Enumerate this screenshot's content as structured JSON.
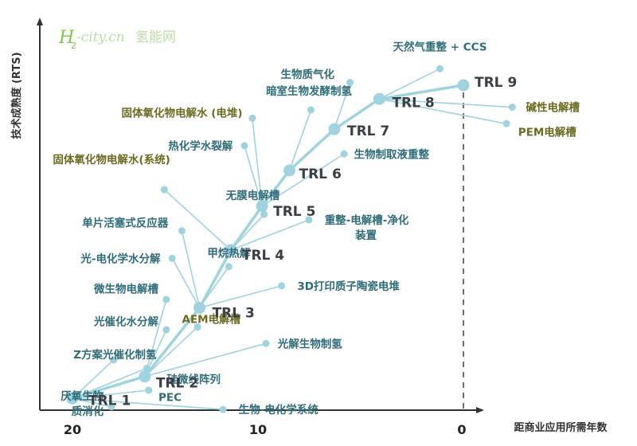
{
  "watermark": {
    "h": "H",
    "sub": "2",
    "latin": "-city.cn",
    "cjk": "氢能网"
  },
  "chart_data": {
    "type": "scatter",
    "xlabel": "距商业应用所需年数",
    "ylabel": "技术成熟度 (RTS)",
    "xlim": [
      20,
      0
    ],
    "ylim": [
      0,
      10
    ],
    "x_ticks": [
      "20",
      "10",
      "0"
    ],
    "colors": {
      "node": "#9ed3df",
      "line": "#9ed3df",
      "text_teal": "#2f6d7a",
      "text_olive": "#6b6b22",
      "axis": "#333333",
      "dash": "#333333",
      "watermark": "#7ac943"
    },
    "trl_points": [
      {
        "label": "TRL 1",
        "x": 20.0,
        "y": 0.6
      },
      {
        "label": "TRL 2",
        "x": 16.3,
        "y": 1.4
      },
      {
        "label": "TRL 3",
        "x": 13.5,
        "y": 3.9
      },
      {
        "label": "TRL 4",
        "x": 11.9,
        "y": 6.0
      },
      {
        "label": "TRL 5",
        "x": 10.3,
        "y": 7.6
      },
      {
        "label": "TRL 6",
        "x": 8.9,
        "y": 8.9
      },
      {
        "label": "TRL 7",
        "x": 6.6,
        "y": 10.4
      },
      {
        "label": "TRL 8",
        "x": 4.3,
        "y": 11.5
      },
      {
        "label": "TRL 9",
        "x": 0.0,
        "y": 12.0
      }
    ],
    "technologies": [
      {
        "name": "天然气重整 + CCS",
        "x": 1.2,
        "y": 12.6,
        "trl": 8,
        "color": "teal",
        "anchor": "middle",
        "lx": 1.2,
        "ly": 13.4
      },
      {
        "name": "碱性电解槽",
        "x": -2.5,
        "y": 11.2,
        "trl": 8,
        "color": "olive",
        "anchor": "start",
        "lx": -3.2,
        "ly": 11.2
      },
      {
        "name": "PEM电解槽",
        "x": -2.2,
        "y": 10.6,
        "trl": 8,
        "color": "olive",
        "anchor": "start",
        "lx": -2.8,
        "ly": 10.3
      },
      {
        "name": "生物质气化",
        "x": 5.8,
        "y": 12.1,
        "trl": 7,
        "color": "teal",
        "anchor": "end",
        "lx": 6.6,
        "ly": 12.4
      },
      {
        "name": "暗室生物发酵制氢",
        "x": 7.8,
        "y": 11.1,
        "trl": 6,
        "color": "teal",
        "anchor": "end",
        "lx": 5.7,
        "ly": 11.8
      },
      {
        "name": "固体氧化物电解水 (电堆)",
        "x": 10.8,
        "y": 10.8,
        "trl": 5,
        "color": "olive",
        "anchor": "end",
        "lx": 11.3,
        "ly": 11.0
      },
      {
        "name": "热化学水裂解",
        "x": 11.2,
        "y": 9.8,
        "trl": 5,
        "color": "teal",
        "anchor": "end",
        "lx": 11.8,
        "ly": 9.8
      },
      {
        "name": "生物制取液重整",
        "x": 6.1,
        "y": 9.5,
        "trl": 5,
        "color": "teal",
        "anchor": "start",
        "lx": 5.6,
        "ly": 9.5
      },
      {
        "name": "固体氧化物电解水(系统)",
        "x": 15.3,
        "y": 8.2,
        "trl": 4,
        "color": "olive",
        "anchor": "end",
        "lx": 15.0,
        "ly": 9.3
      },
      {
        "name": "无膜电解槽",
        "x": 10.2,
        "y": 7.3,
        "trl": 4,
        "color": "teal",
        "anchor": "end",
        "lx": 9.4,
        "ly": 8.0
      },
      {
        "name": "重整-电解槽-净化",
        "name2": "装置",
        "x": 7.9,
        "y": 7.1,
        "trl": 4,
        "color": "teal",
        "anchor": "start",
        "lx": 7.1,
        "ly": 7.1
      },
      {
        "name": "单片活塞式反应器",
        "x": 14.4,
        "y": 6.7,
        "trl": 3,
        "color": "teal",
        "anchor": "end",
        "lx": 15.1,
        "ly": 7.0
      },
      {
        "name": "光-电化学水分解",
        "x": 14.9,
        "y": 5.7,
        "trl": 3,
        "color": "teal",
        "anchor": "end",
        "lx": 15.5,
        "ly": 5.7
      },
      {
        "name": "甲烷热解",
        "x": 12.0,
        "y": 5.4,
        "trl": 3,
        "color": "teal",
        "anchor": "middle",
        "lx": 12.0,
        "ly": 5.9
      },
      {
        "name": "3D打印质子陶瓷电堆",
        "x": 9.3,
        "y": 4.7,
        "trl": 3,
        "color": "teal",
        "anchor": "start",
        "lx": 8.5,
        "ly": 4.7
      },
      {
        "name": "微生物电解槽",
        "x": 15.2,
        "y": 4.2,
        "trl": 2,
        "color": "teal",
        "anchor": "end",
        "lx": 15.6,
        "ly": 4.6
      },
      {
        "name": "AEM电解槽",
        "x": 13.6,
        "y": 3.2,
        "trl": 2,
        "color": "olive",
        "anchor": "middle",
        "lx": 12.9,
        "ly": 3.5
      },
      {
        "name": "光催化水分解",
        "x": 15.2,
        "y": 3.1,
        "trl": 2,
        "color": "teal",
        "anchor": "end",
        "lx": 15.6,
        "ly": 3.4
      },
      {
        "name": "光解生物制氢",
        "x": 10.1,
        "y": 2.6,
        "trl": 2,
        "color": "teal",
        "anchor": "start",
        "lx": 9.5,
        "ly": 2.6
      },
      {
        "name": "Z方案光催化制氢",
        "x": 17.9,
        "y": 2.0,
        "trl": 1,
        "color": "teal",
        "anchor": "end",
        "lx": 15.7,
        "ly": 2.2
      },
      {
        "name": "硅微线阵列",
        "x": 16.2,
        "y": 1.7,
        "trl": 1,
        "color": "teal",
        "anchor": "middle",
        "lx": 13.8,
        "ly": 1.3
      },
      {
        "name": "PEC",
        "x": 16.1,
        "y": 0.9,
        "trl": 1,
        "color": "teal",
        "anchor": "start",
        "lx": 15.6,
        "ly": 0.65
      },
      {
        "name": "厌氧生物",
        "name2": "质消化",
        "x": 18.0,
        "y": 0.3,
        "trl": 1,
        "color": "teal",
        "anchor": "end",
        "lx": 18.4,
        "ly": 0.7
      },
      {
        "name": "生物-电化学系统",
        "x": 12.3,
        "y": 0.2,
        "trl": 1,
        "color": "teal",
        "anchor": "start",
        "lx": 11.5,
        "ly": 0.2
      }
    ]
  }
}
